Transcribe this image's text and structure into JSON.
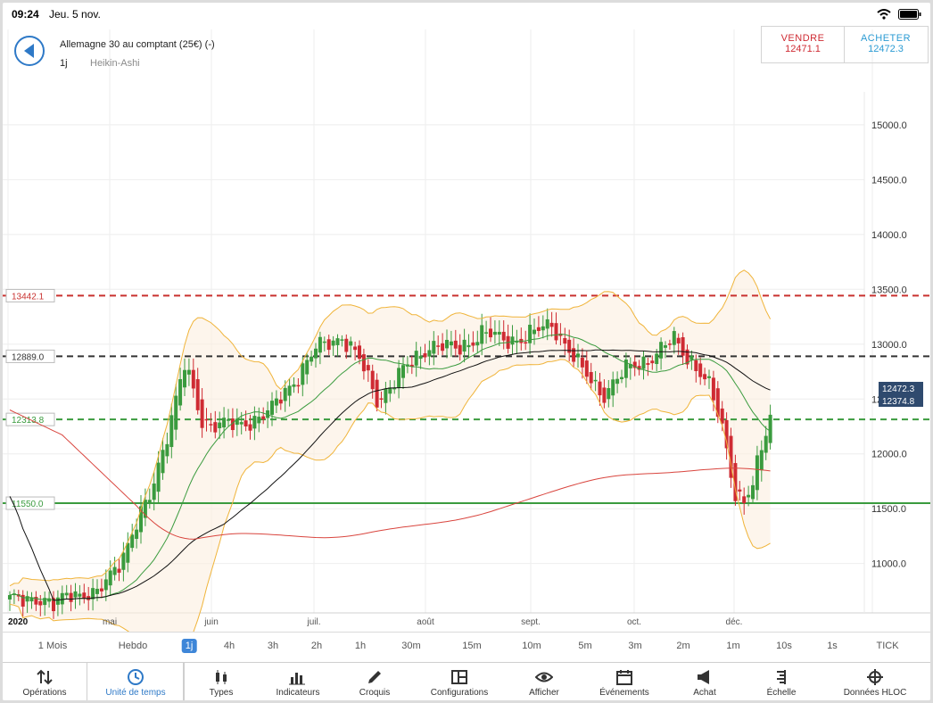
{
  "status": {
    "time": "09:24",
    "date": "Jeu. 5 nov."
  },
  "header": {
    "instrument": "Allemagne 30 au comptant (25€) (-)",
    "timeframe": "1j",
    "chart_type": "Heikin-Ashi"
  },
  "trade": {
    "sell_label": "VENDRE",
    "sell_price": "12471.1",
    "buy_label": "ACHETER",
    "buy_price": "12472.3"
  },
  "colors": {
    "accent": "#2e79c7",
    "sell": "#cf2b33",
    "buy": "#2b9bd3",
    "up": "#3a9b3e",
    "down": "#cf2b33"
  },
  "chart_data": {
    "type": "candlestick",
    "ylim": [
      10550,
      15300
    ],
    "y_ticks": [
      "15000.0",
      "14500.0",
      "14000.0",
      "13500.0",
      "13000.0",
      "12500.0",
      "12000.0",
      "11500.0",
      "11000.0"
    ],
    "x_labels": [
      "2020",
      "mai",
      "juin",
      "juil.",
      "août",
      "sept.",
      "oct.",
      "déc."
    ],
    "levels": [
      {
        "value": 13442.1,
        "label": "13442.1",
        "color": "#c9312f",
        "dashed": true
      },
      {
        "value": 12889.0,
        "label": "12889.0",
        "color": "#333333",
        "dashed": true
      },
      {
        "value": 12313.8,
        "label": "12313.8",
        "color": "#3a9b3e",
        "dashed": true
      },
      {
        "value": 11550.0,
        "label": "11550.0",
        "color": "#3a9b3e",
        "dashed": false
      }
    ],
    "price_tags": [
      "12472.3",
      "12374.8"
    ],
    "anchors": [
      {
        "i": 0,
        "v": 10650
      },
      {
        "i": 6,
        "v": 10700
      },
      {
        "i": 10,
        "v": 10600
      },
      {
        "i": 14,
        "v": 10750
      },
      {
        "i": 20,
        "v": 10700
      },
      {
        "i": 26,
        "v": 11100
      },
      {
        "i": 32,
        "v": 11600
      },
      {
        "i": 36,
        "v": 12200
      },
      {
        "i": 40,
        "v": 12800
      },
      {
        "i": 44,
        "v": 12300
      },
      {
        "i": 52,
        "v": 12250
      },
      {
        "i": 60,
        "v": 12400
      },
      {
        "i": 70,
        "v": 12950
      },
      {
        "i": 76,
        "v": 13080
      },
      {
        "i": 80,
        "v": 12850
      },
      {
        "i": 84,
        "v": 12500
      },
      {
        "i": 90,
        "v": 12750
      },
      {
        "i": 96,
        "v": 13000
      },
      {
        "i": 102,
        "v": 12950
      },
      {
        "i": 108,
        "v": 13100
      },
      {
        "i": 112,
        "v": 13050
      },
      {
        "i": 118,
        "v": 13050
      },
      {
        "i": 124,
        "v": 13200
      },
      {
        "i": 130,
        "v": 12800
      },
      {
        "i": 136,
        "v": 12550
      },
      {
        "i": 142,
        "v": 12800
      },
      {
        "i": 148,
        "v": 12900
      },
      {
        "i": 152,
        "v": 13050
      },
      {
        "i": 156,
        "v": 12850
      },
      {
        "i": 160,
        "v": 12600
      },
      {
        "i": 163,
        "v": 12250
      },
      {
        "i": 166,
        "v": 11650
      },
      {
        "i": 168,
        "v": 11550
      },
      {
        "i": 170,
        "v": 11700
      },
      {
        "i": 172,
        "v": 12050
      },
      {
        "i": 174,
        "v": 12370
      }
    ]
  },
  "timeframes": [
    "1 Mois",
    "Hebdo",
    "1j",
    "4h",
    "3h",
    "2h",
    "1h",
    "30m",
    "15m",
    "10m",
    "5m",
    "3m",
    "2m",
    "1m",
    "10s",
    "1s",
    "TICK"
  ],
  "active_timeframe": "1j",
  "tabs": [
    {
      "label": "Opérations",
      "icon": "arrows-updown-icon"
    },
    {
      "label": "Unité de temps",
      "icon": "clock-icon"
    },
    {
      "label": "Types",
      "icon": "candles-icon"
    },
    {
      "label": "Indicateurs",
      "icon": "bars-icon"
    },
    {
      "label": "Croquis",
      "icon": "pencil-icon"
    },
    {
      "label": "Configurations",
      "icon": "layout-icon"
    },
    {
      "label": "Afficher",
      "icon": "eye-icon"
    },
    {
      "label": "Événements",
      "icon": "calendar-icon"
    },
    {
      "label": "Achat",
      "icon": "megaphone-icon"
    },
    {
      "label": "Échelle",
      "icon": "scale-icon"
    },
    {
      "label": "Données HLOC",
      "icon": "crosshair-icon"
    }
  ]
}
